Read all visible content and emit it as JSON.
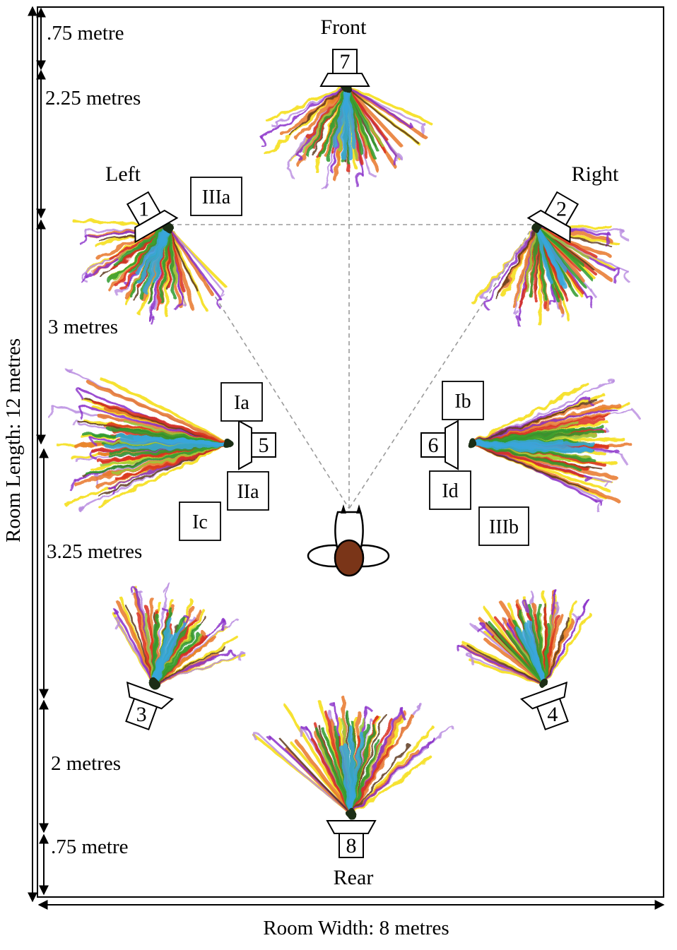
{
  "positions": {
    "front": "Front",
    "left": "Left",
    "right": "Right",
    "rear": "Rear"
  },
  "speakers": [
    "1",
    "2",
    "3",
    "4",
    "5",
    "6",
    "7",
    "8"
  ],
  "sections": [
    "IIIa",
    "Ia",
    "IIa",
    "Ic",
    "Ib",
    "Id",
    "IIIb"
  ],
  "dimensions": {
    "room_length": "Room Length: 12  metres",
    "room_width": "Room Width: 8 metres",
    "segments": [
      ".75 metre",
      "2.25 metres",
      "3 metres",
      "3.25 metres",
      "2 metres",
      ".75 metre"
    ]
  },
  "colors": {
    "red": "#d9301c",
    "orange": "#e8772c",
    "yellow": "#f5dd10",
    "green": "#2f9a2e",
    "light_green": "#9bcb3a",
    "blue": "#38a6dc",
    "purple": "#8a2fc9",
    "violet": "#b98ce0",
    "brown": "#5e3a1c",
    "listener_head": "#7a3518",
    "guide_line": "#9a9a9a"
  },
  "icons": {
    "listener": "listener-top-view-icon",
    "speaker": "speaker-icon"
  }
}
